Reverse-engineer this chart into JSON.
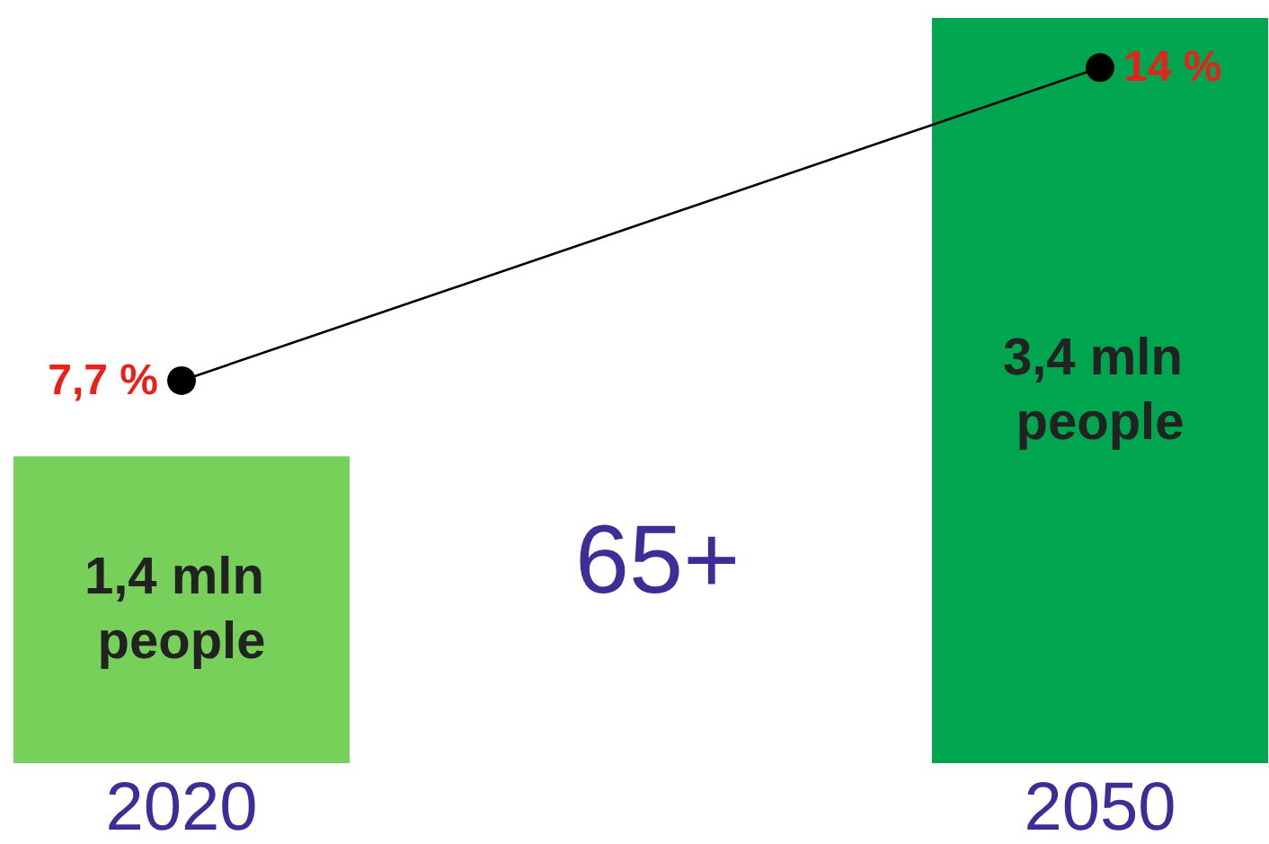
{
  "chart_data": {
    "type": "bar",
    "categories": [
      "2020",
      "2050"
    ],
    "annotations": [
      "65+"
    ],
    "tick_labels": "x",
    "grid": false,
    "series": [
      {
        "colors": [
          "#77d05a",
          "#00a550"
        ],
        "values": [
          1.4,
          3.4
        ],
        "value_labels": [
          "1,4 mln people",
          "3,4 mln people"
        ]
      },
      {
        "type": "line",
        "axis": "y2",
        "color": "#000000",
        "marker": "circle",
        "values": [
          7.7,
          14
        ],
        "value_labels": [
          "7,7 %",
          "14 %"
        ]
      }
    ]
  }
}
